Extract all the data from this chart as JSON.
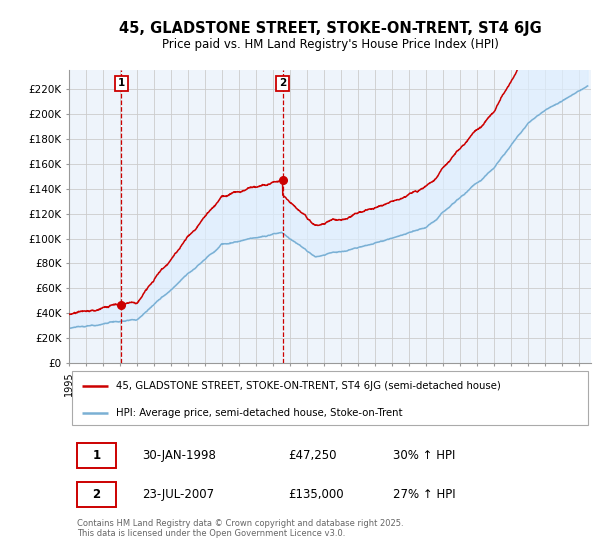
{
  "title_line1": "45, GLADSTONE STREET, STOKE-ON-TRENT, ST4 6JG",
  "title_line2": "Price paid vs. HM Land Registry's House Price Index (HPI)",
  "legend_label_red": "45, GLADSTONE STREET, STOKE-ON-TRENT, ST4 6JG (semi-detached house)",
  "legend_label_blue": "HPI: Average price, semi-detached house, Stoke-on-Trent",
  "red_color": "#cc0000",
  "blue_color": "#7ab0d4",
  "fill_color": "#ddeeff",
  "purchase1_date": "30-JAN-1998",
  "purchase1_price": 47250,
  "purchase1_label": "30% ↑ HPI",
  "purchase2_date": "23-JUL-2007",
  "purchase2_price": 135000,
  "purchase2_label": "27% ↑ HPI",
  "vline1_x": 1998.08,
  "vline2_x": 2007.56,
  "ylim_min": 0,
  "ylim_max": 235000,
  "xlim_min": 1995.0,
  "xlim_max": 2025.7,
  "yticks": [
    0,
    20000,
    40000,
    60000,
    80000,
    100000,
    120000,
    140000,
    160000,
    180000,
    200000,
    220000
  ],
  "ytick_labels": [
    "£0",
    "£20K",
    "£40K",
    "£60K",
    "£80K",
    "£100K",
    "£120K",
    "£140K",
    "£160K",
    "£180K",
    "£200K",
    "£220K"
  ],
  "copyright_text": "Contains HM Land Registry data © Crown copyright and database right 2025.\nThis data is licensed under the Open Government Licence v3.0.",
  "background_color": "#ffffff",
  "grid_color": "#cccccc",
  "plot_bg_color": "#eef4fb"
}
